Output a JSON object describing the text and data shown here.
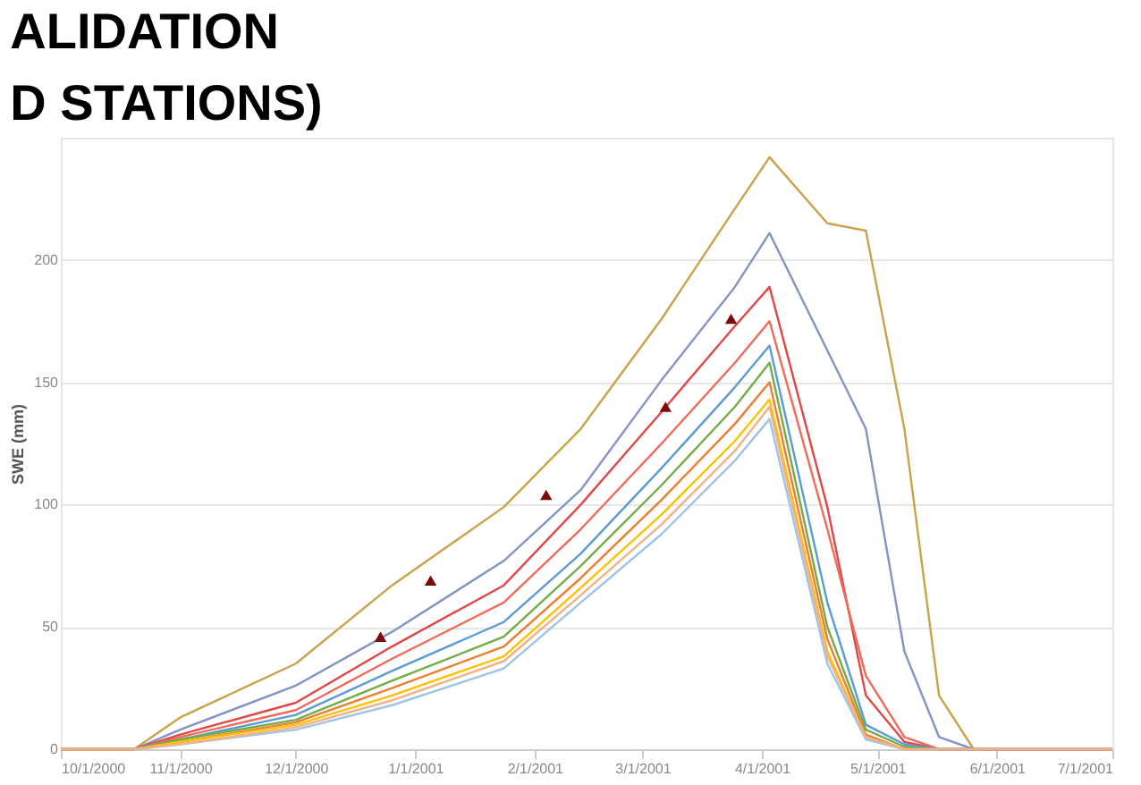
{
  "chart_data": {
    "type": "line",
    "title": "ALIDATION\nD STATIONS)",
    "ylabel": "SWE (mm)",
    "x": [
      "2000-10-01",
      "2000-10-20",
      "2000-11-01",
      "2000-12-01",
      "2000-12-26",
      "2001-01-24",
      "2001-02-13",
      "2001-03-06",
      "2001-03-25",
      "2001-04-03",
      "2001-04-18",
      "2001-04-28",
      "2001-05-08",
      "2001-05-17",
      "2001-05-26",
      "2001-06-15",
      "2001-07-01"
    ],
    "xlim": [
      "2000-10-01",
      "2001-07-01"
    ],
    "xticks": [
      {
        "value": "2000-10-01",
        "label": "10/1/2000"
      },
      {
        "value": "2000-11-01",
        "label": "11/1/2000"
      },
      {
        "value": "2000-12-01",
        "label": "12/1/2000"
      },
      {
        "value": "2001-01-01",
        "label": "1/1/2001"
      },
      {
        "value": "2001-02-01",
        "label": "2/1/2001"
      },
      {
        "value": "2001-03-01",
        "label": "3/1/2001"
      },
      {
        "value": "2001-04-01",
        "label": "4/1/2001"
      },
      {
        "value": "2001-05-01",
        "label": "5/1/2001"
      },
      {
        "value": "2001-06-01",
        "label": "6/1/2001"
      },
      {
        "value": "2001-07-01",
        "label": "7/1/2001"
      }
    ],
    "ylim": [
      0,
      250
    ],
    "yticks": [
      0,
      50,
      100,
      150,
      200
    ],
    "grid": "y",
    "line_style": "solid",
    "series": [
      {
        "color": "#c9a24a",
        "values": [
          0,
          0,
          13,
          35,
          67,
          99,
          131,
          176,
          221,
          242,
          215,
          212,
          131,
          22,
          0,
          0,
          0
        ]
      },
      {
        "color": "#8194c4",
        "values": [
          0,
          0,
          8,
          26,
          48,
          77,
          106,
          151,
          189,
          211,
          163,
          131,
          40,
          5,
          0,
          0,
          0
        ]
      },
      {
        "color": "#e04848",
        "values": [
          0,
          0,
          6,
          19,
          42,
          67,
          100,
          138,
          173,
          189,
          99,
          22,
          3,
          0,
          0,
          0,
          0
        ]
      },
      {
        "color": "#f06a5a",
        "values": [
          0,
          0,
          5,
          16,
          37,
          60,
          90,
          125,
          158,
          175,
          90,
          30,
          5,
          0,
          0,
          0,
          0
        ]
      },
      {
        "color": "#5b9bd5",
        "values": [
          0,
          0,
          4,
          14,
          32,
          52,
          80,
          115,
          148,
          165,
          60,
          10,
          2,
          0,
          0,
          0,
          0
        ]
      },
      {
        "color": "#70ad47",
        "values": [
          0,
          0,
          4,
          12,
          28,
          46,
          75,
          108,
          140,
          158,
          50,
          8,
          1,
          0,
          0,
          null,
          null
        ]
      },
      {
        "color": "#ed7d31",
        "values": [
          0,
          0,
          3,
          11,
          25,
          42,
          70,
          102,
          133,
          150,
          45,
          6,
          0,
          0,
          0,
          0,
          0
        ]
      },
      {
        "color": "#ffc000",
        "values": [
          0,
          0,
          3,
          10,
          22,
          38,
          66,
          96,
          126,
          143,
          40,
          5,
          0,
          null,
          null,
          null,
          null
        ]
      },
      {
        "color": "#9dc3e6",
        "values": [
          0,
          0,
          2,
          8,
          18,
          33,
          60,
          88,
          118,
          135,
          35,
          4,
          0,
          0,
          0,
          0,
          0
        ]
      },
      {
        "color": "#f4b183",
        "values": [
          0,
          0,
          2,
          9,
          20,
          36,
          63,
          92,
          122,
          140,
          38,
          5,
          0,
          0,
          0,
          0,
          0
        ]
      },
      {
        "type": "scatter",
        "marker": "triangle",
        "color": "#7b0c0c",
        "x": [
          "2000-12-23",
          "2001-01-05",
          "2001-02-04",
          "2001-03-07",
          "2001-03-24"
        ],
        "values": [
          46,
          69,
          104,
          140,
          176
        ]
      }
    ]
  }
}
